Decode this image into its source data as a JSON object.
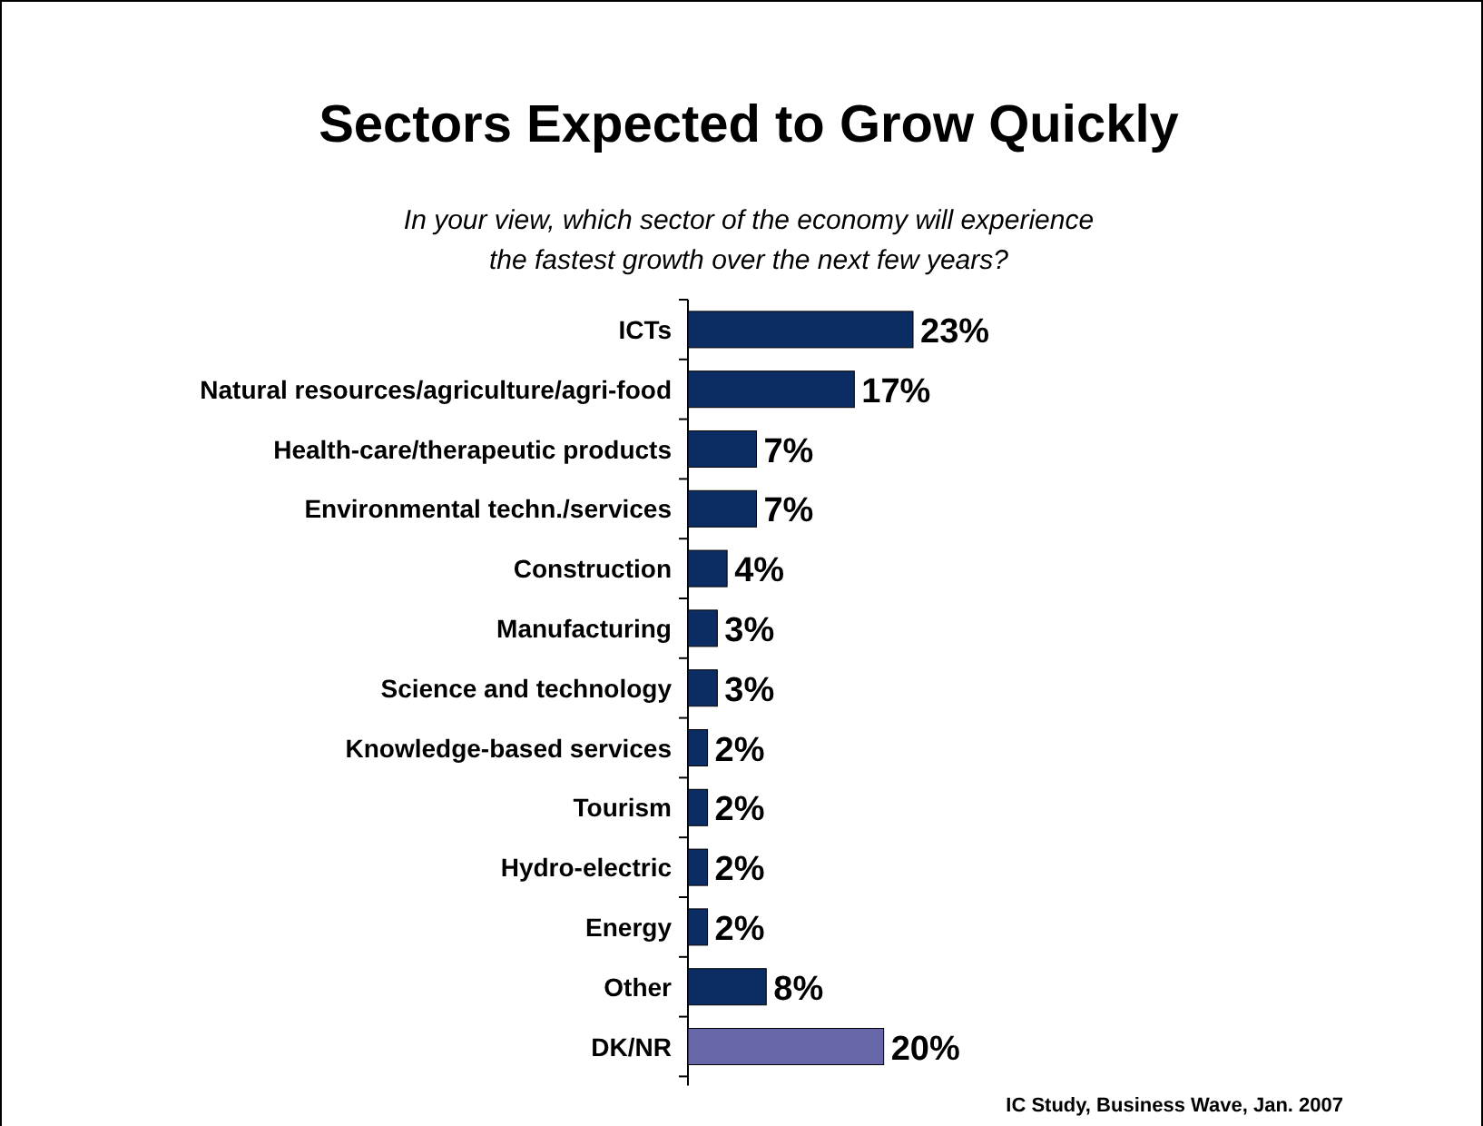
{
  "chart_data": {
    "type": "bar",
    "orientation": "horizontal",
    "title": "Sectors Expected to Grow Quickly",
    "subtitle": "In your view, which sector of the economy will experience\nthe fastest growth over the next few years?",
    "categories": [
      "ICTs",
      "Natural resources/agriculture/agri-food",
      "Health-care/therapeutic products",
      "Environmental techn./services",
      "Construction",
      "Manufacturing",
      "Science and technology",
      "Knowledge-based services",
      "Tourism",
      "Hydro-electric",
      "Energy",
      "Other",
      "DK/NR"
    ],
    "values": [
      23,
      17,
      7,
      7,
      4,
      3,
      3,
      2,
      2,
      2,
      2,
      8,
      20
    ],
    "colors": [
      "#0c2c64",
      "#0c2c64",
      "#0c2c64",
      "#0c2c64",
      "#0c2c64",
      "#0c2c64",
      "#0c2c64",
      "#0c2c64",
      "#0c2c64",
      "#0c2c64",
      "#0c2c64",
      "#0c2c64",
      "#6666a8"
    ],
    "data_labels": true,
    "value_labels": [
      "23%",
      "17%",
      "7%",
      "7%",
      "4%",
      "3%",
      "3%",
      "2%",
      "2%",
      "2%",
      "2%",
      "8%",
      "20%"
    ],
    "annotations": [
      "IC Study, Business Wave, Jan. 2007"
    ]
  }
}
